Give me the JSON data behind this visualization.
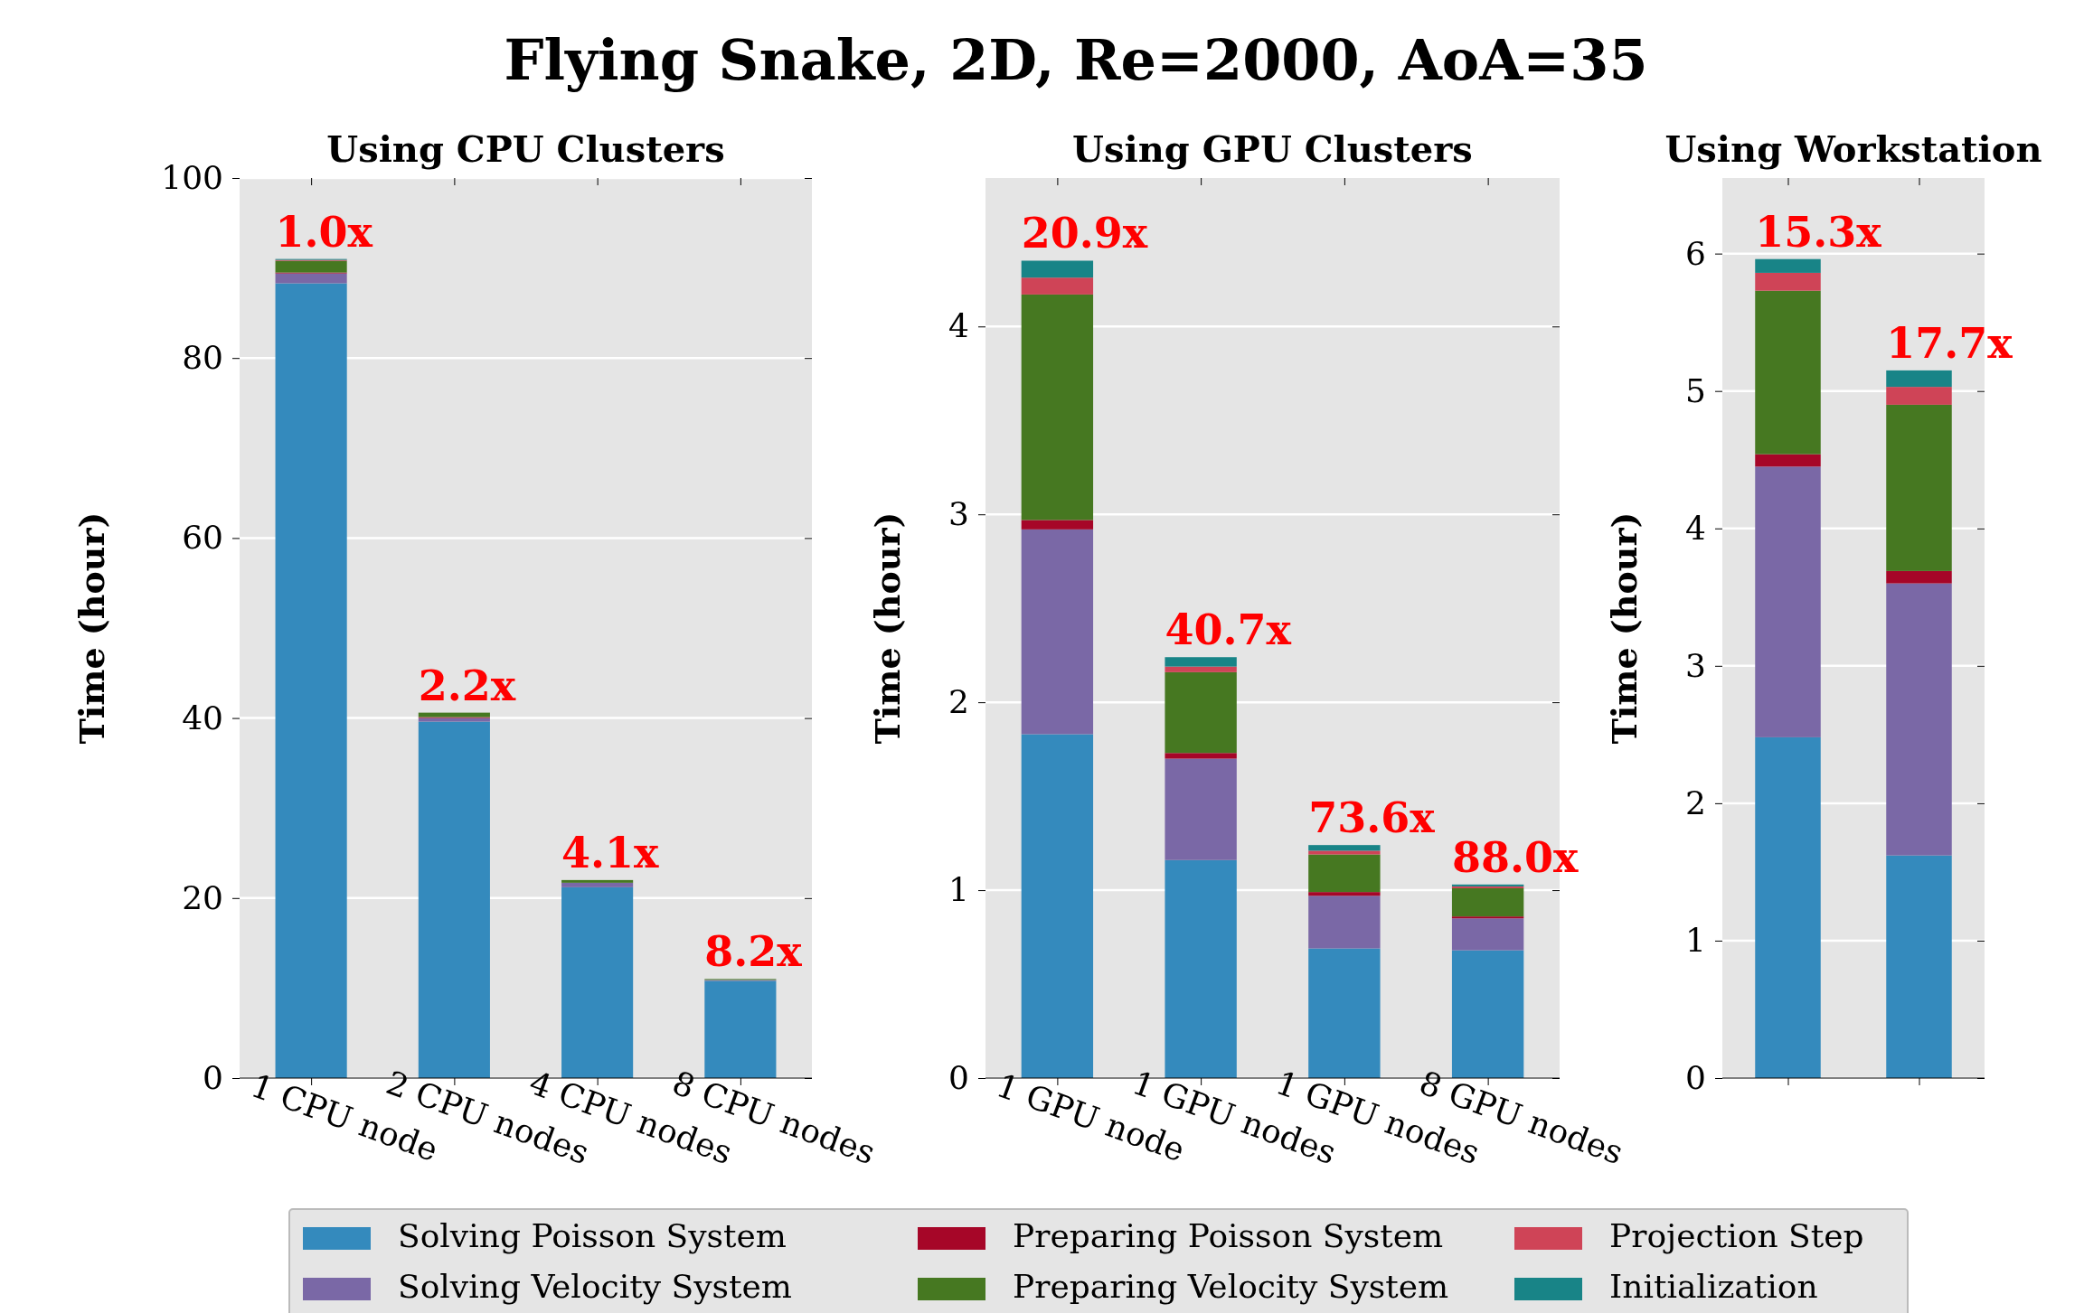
{
  "chart_data": [
    {
      "type": "bar",
      "title": "Using CPU Clusters",
      "ylabel": "Time (hour)",
      "stacked": true,
      "grid": "y",
      "legend": "bottom",
      "categories": [
        "1 CPU node",
        "2 CPU nodes",
        "4 CPU nodes",
        "8 CPU nodes"
      ],
      "series": [
        {
          "name": "Solving Poisson System",
          "color": "#348abd",
          "values": [
            88.3,
            39.6,
            21.2,
            10.8
          ]
        },
        {
          "name": "Solving Velocity System",
          "color": "#7a68a6",
          "values": [
            1.1,
            0.4,
            0.5,
            0.1
          ]
        },
        {
          "name": "Preparing Poisson System",
          "color": "#a60628",
          "values": [
            0.1,
            0.1,
            0,
            0
          ]
        },
        {
          "name": "Preparing Velocity System",
          "color": "#467821",
          "values": [
            1.3,
            0.5,
            0.3,
            0.1
          ]
        },
        {
          "name": "Projection Step",
          "color": "#cf4457",
          "values": [
            0.1,
            0,
            0,
            0
          ]
        },
        {
          "name": "Initialization",
          "color": "#188487",
          "values": [
            0.1,
            0,
            0,
            0
          ]
        }
      ],
      "annotations": [
        "Flying Snake, 2D, Re=2000, AoA=35",
        {
          "text": "1.0x",
          "y": 91
        },
        {
          "text": "2.2x",
          "y": 40.6
        },
        {
          "text": "4.1x",
          "y": 22
        },
        {
          "text": "8.2x",
          "y": 11
        }
      ],
      "ylim": [
        0,
        100
      ],
      "yticks": [
        0,
        20,
        40,
        60,
        80,
        100
      ]
    },
    {
      "type": "bar",
      "title": "Using GPU Clusters",
      "ylabel": "Time (hour)",
      "stacked": true,
      "grid": "y",
      "categories": [
        "1 GPU node",
        "1 GPU nodes",
        "1 GPU nodes",
        "8 GPU nodes"
      ],
      "series": [
        {
          "color": "#348abd",
          "values": [
            1.83,
            1.16,
            0.69,
            0.68
          ]
        },
        {
          "color": "#7a68a6",
          "values": [
            1.09,
            0.54,
            0.28,
            0.17
          ]
        },
        {
          "color": "#a60628",
          "values": [
            0.05,
            0.03,
            0.02,
            0.01
          ]
        },
        {
          "color": "#467821",
          "values": [
            1.2,
            0.43,
            0.2,
            0.15
          ]
        },
        {
          "color": "#cf4457",
          "values": [
            0.09,
            0.03,
            0.02,
            0.01
          ]
        },
        {
          "color": "#188487",
          "values": [
            0.09,
            0.05,
            0.03,
            0.01
          ]
        }
      ],
      "annotations": [
        {
          "text": "20.9x",
          "y": 4.35
        },
        {
          "text": "40.7x",
          "y": 2.24
        },
        {
          "text": "73.6x",
          "y": 1.24
        },
        {
          "text": "88.0x",
          "y": 1.03
        }
      ],
      "ylim": [
        0,
        4.79
      ],
      "yticks": [
        0,
        1,
        2,
        3,
        4
      ]
    },
    {
      "type": "bar",
      "title": "Using Workstation",
      "ylabel": "Time (hour)",
      "stacked": true,
      "grid": "y",
      "categories": [
        null,
        null
      ],
      "series": [
        {
          "color": "#348abd",
          "values": [
            2.48,
            1.62
          ]
        },
        {
          "color": "#7a68a6",
          "values": [
            1.97,
            1.98
          ]
        },
        {
          "color": "#a60628",
          "values": [
            0.09,
            0.09
          ]
        },
        {
          "color": "#467821",
          "values": [
            1.19,
            1.21
          ]
        },
        {
          "color": "#cf4457",
          "values": [
            0.13,
            0.13
          ]
        },
        {
          "color": "#188487",
          "values": [
            0.1,
            0.12
          ]
        }
      ],
      "annotations": [
        {
          "text": "15.3x",
          "y": 5.96
        },
        {
          "text": "17.7x",
          "y": 5.15
        }
      ],
      "ylim": [
        0,
        6.55
      ],
      "yticks": [
        0,
        1,
        2,
        3,
        4,
        5,
        6
      ]
    }
  ]
}
